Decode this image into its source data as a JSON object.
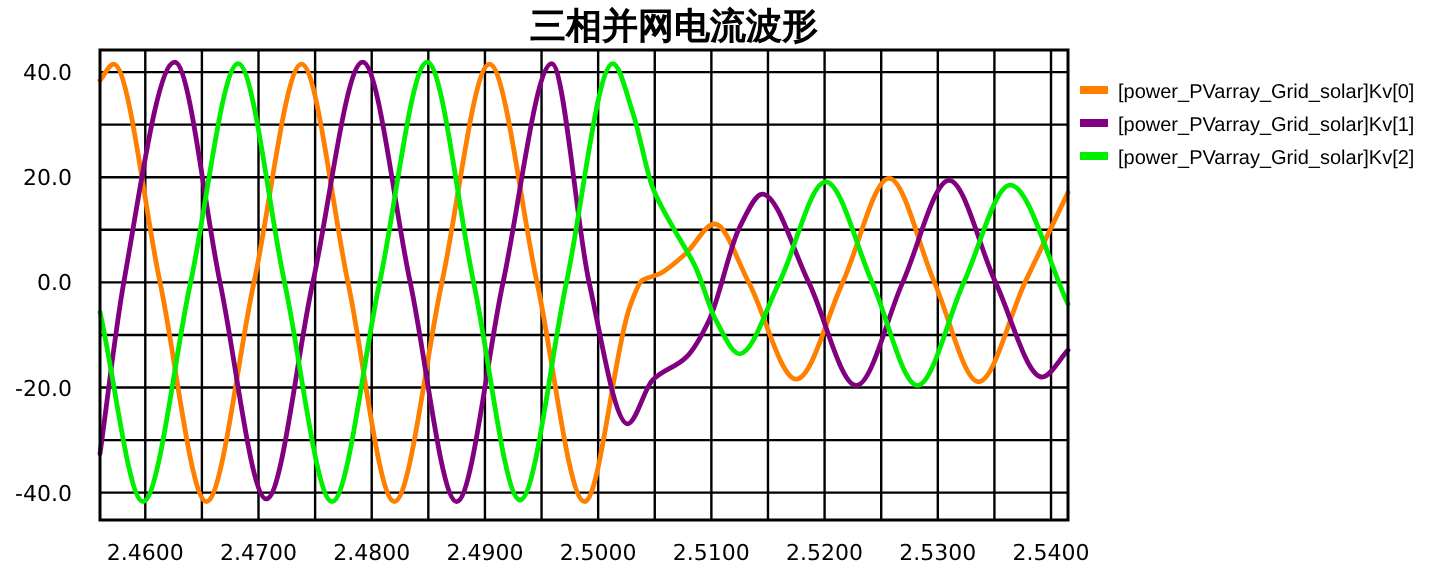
{
  "chart_data": {
    "type": "line",
    "title": "三相并网电流波形",
    "xlim": [
      2.456,
      2.5415
    ],
    "ylim": [
      -45.2,
      44.2
    ],
    "xticks": [
      {
        "value": 2.46,
        "label": "2.4600"
      },
      {
        "value": 2.465,
        "label": null
      },
      {
        "value": 2.47,
        "label": "2.4700"
      },
      {
        "value": 2.475,
        "label": null
      },
      {
        "value": 2.48,
        "label": "2.4800"
      },
      {
        "value": 2.485,
        "label": null
      },
      {
        "value": 2.49,
        "label": "2.4900"
      },
      {
        "value": 2.495,
        "label": null
      },
      {
        "value": 2.5,
        "label": "2.5000"
      },
      {
        "value": 2.505,
        "label": null
      },
      {
        "value": 2.51,
        "label": "2.5100"
      },
      {
        "value": 2.515,
        "label": null
      },
      {
        "value": 2.52,
        "label": "2.5200"
      },
      {
        "value": 2.525,
        "label": null
      },
      {
        "value": 2.53,
        "label": "2.5300"
      },
      {
        "value": 2.535,
        "label": null
      },
      {
        "value": 2.54,
        "label": "2.5400"
      }
    ],
    "yticks": [
      {
        "value": -40,
        "label": "-40.0"
      },
      {
        "value": -30,
        "label": null
      },
      {
        "value": -20,
        "label": "-20.0"
      },
      {
        "value": -10,
        "label": null
      },
      {
        "value": 0,
        "label": "0.0"
      },
      {
        "value": 10,
        "label": null
      },
      {
        "value": 20,
        "label": "20.0"
      },
      {
        "value": 30,
        "label": null
      },
      {
        "value": 40,
        "label": "40.0"
      }
    ],
    "grid": true,
    "legend": "right",
    "series": [
      {
        "name": "[power_PVarray_Grid_solar]Kv[0]",
        "color": "#ff8000",
        "x": [
          2.456,
          2.4572,
          2.4613,
          2.4654,
          2.4696,
          2.4738,
          2.4779,
          2.482,
          2.4862,
          2.4904,
          2.4946,
          2.4988,
          2.5028,
          2.5039,
          2.5054,
          2.5077,
          2.5103,
          2.5133,
          2.5175,
          2.5216,
          2.5257,
          2.5297,
          2.5336,
          2.5377,
          2.5415
        ],
        "values": [
          38.4,
          41.5,
          0,
          -41.7,
          0,
          41.5,
          0,
          -41.7,
          0,
          41.5,
          0,
          -41.7,
          -4.6,
          0.4,
          1.6,
          5.4,
          11.1,
          0,
          -18.4,
          0,
          19.8,
          0,
          -18.9,
          0,
          17.1
        ]
      },
      {
        "name": "[power_PVarray_Grid_solar]Kv[1]",
        "color": "#800080",
        "x": [
          2.456,
          2.4581,
          2.4626,
          2.4666,
          2.4707,
          2.4748,
          2.4792,
          2.4834,
          2.4875,
          2.4916,
          2.4959,
          2.4992,
          2.5026,
          2.5048,
          2.5078,
          2.5098,
          2.5125,
          2.5145,
          2.5186,
          2.5228,
          2.5269,
          2.531,
          2.5351,
          2.5392,
          2.5415
        ],
        "values": [
          -32.6,
          0,
          41.9,
          0,
          -41.2,
          0,
          41.9,
          0,
          -41.7,
          0,
          41.6,
          0,
          -26.9,
          -18.6,
          -14.2,
          -7.2,
          10.5,
          16.8,
          0,
          -19.6,
          0,
          19.4,
          0,
          -18,
          -12.9
        ]
      },
      {
        "name": "[power_PVarray_Grid_solar]Kv[2]",
        "color": "#00ee00",
        "x": [
          2.456,
          2.4598,
          2.464,
          2.4682,
          2.4723,
          2.4765,
          2.4807,
          2.4849,
          2.489,
          2.4931,
          2.4972,
          2.5013,
          2.5031,
          2.5048,
          2.5066,
          2.5086,
          2.5104,
          2.5125,
          2.516,
          2.5201,
          2.5242,
          2.5282,
          2.5323,
          2.5364,
          2.5415
        ],
        "values": [
          -5.7,
          -41.7,
          0,
          41.6,
          0,
          -41.7,
          0,
          41.9,
          0,
          -41.4,
          0,
          41.6,
          32,
          18.1,
          10.5,
          2.9,
          -7.2,
          -13.6,
          0,
          19.1,
          0,
          -19.6,
          0,
          18.5,
          -4.1
        ]
      }
    ]
  }
}
